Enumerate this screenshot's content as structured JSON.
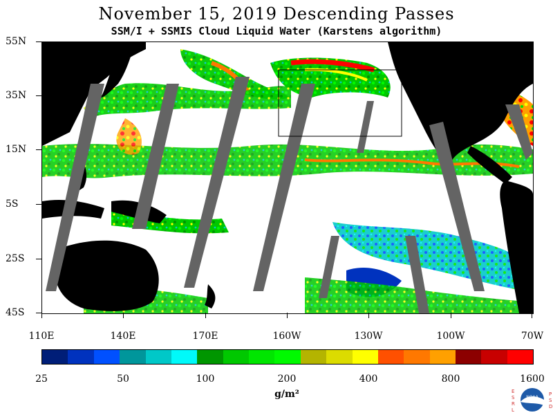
{
  "title": "November 15, 2019  Descending Passes",
  "subtitle": "SSM/I + SSMIS Cloud Liquid Water (Karstens algorithm)",
  "map": {
    "lat_labels": [
      "55N",
      "35N",
      "15N",
      "5S",
      "25S",
      "45S"
    ],
    "lon_labels": [
      "110E",
      "140E",
      "170E",
      "160W",
      "130W",
      "100W",
      "70W"
    ],
    "land_color": "#000000",
    "ocean_clear_color": "#ffffff",
    "swath_gap_color": "#646464",
    "box_color": "#000000"
  },
  "colorbar": {
    "colors": [
      "#001e78",
      "#0032be",
      "#0050ff",
      "#00969b",
      "#00c8c8",
      "#00fafa",
      "#009600",
      "#00c800",
      "#00e600",
      "#00fa00",
      "#b4b400",
      "#dcdc00",
      "#ffff00",
      "#ff5000",
      "#ff7800",
      "#ffa000",
      "#8c0000",
      "#c80000",
      "#ff0000"
    ],
    "labels": [
      "25",
      "50",
      "100",
      "200",
      "400",
      "800",
      "1600"
    ],
    "units": "g/m²"
  },
  "logo": {
    "left_letters": "ESRL",
    "right_letters": "PSD",
    "center_text": "NOAA"
  }
}
